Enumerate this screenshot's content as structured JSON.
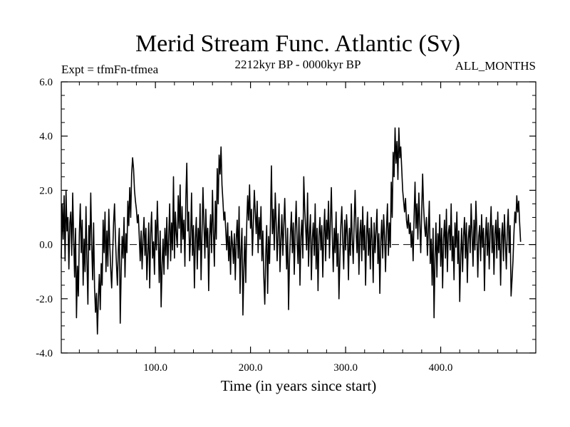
{
  "chart_data": {
    "type": "line",
    "title": "Merid Stream Func. Atlantic (Sv)",
    "subtitle_left": "Expt = tfmFn-tfmea",
    "subtitle_center": "2212kyr BP - 0000kyr BP",
    "subtitle_right": "ALL_MONTHS",
    "xlabel": "Time (in years since start)",
    "ylabel": "",
    "xlim": [
      1,
      500
    ],
    "ylim": [
      -4.0,
      6.0
    ],
    "xticks": [
      100,
      200,
      300,
      400
    ],
    "xtick_labels": [
      "100.0",
      "200.0",
      "300.0",
      "400.0"
    ],
    "yticks": [
      -4,
      -2,
      0,
      2,
      4,
      6
    ],
    "ytick_labels": [
      "-4.0",
      "-2.0",
      "0.0",
      "2.0",
      "4.0",
      "6.0"
    ],
    "zero_line": 0.0,
    "series": [
      {
        "name": "Merid Stream Func. Atlantic",
        "x_start": 1,
        "x_step": 1,
        "values": [
          -0.5,
          1.5,
          0.2,
          1.8,
          -0.6,
          2.0,
          0.5,
          1.0,
          -0.9,
          0.8,
          1.2,
          -0.4,
          1.9,
          0.3,
          -1.2,
          0.6,
          -2.7,
          -0.8,
          -1.9,
          0.4,
          1.5,
          -0.3,
          0.9,
          -1.5,
          0.2,
          -1.0,
          1.4,
          -0.6,
          -2.2,
          0.7,
          -0.2,
          1.9,
          0.0,
          -1.3,
          0.8,
          -1.6,
          -2.5,
          -1.8,
          -3.3,
          -2.0,
          -1.1,
          -2.4,
          -0.7,
          -1.5,
          0.9,
          -0.3,
          1.2,
          -1.0,
          0.5,
          -0.8,
          1.3,
          0.0,
          -0.9,
          -1.6,
          -0.4,
          0.8,
          1.5,
          0.2,
          -0.7,
          -1.5,
          -0.2,
          0.6,
          -2.9,
          -1.0,
          0.3,
          -0.5,
          1.0,
          -1.2,
          0.4,
          -0.3,
          1.6,
          0.7,
          2.1,
          1.0,
          2.6,
          3.2,
          2.8,
          2.0,
          1.6,
          1.3,
          0.8,
          1.1,
          0.3,
          -0.6,
          0.5,
          -0.9,
          0.2,
          1.0,
          -0.4,
          0.6,
          -1.3,
          -0.3,
          0.8,
          -1.6,
          0.4,
          1.2,
          -0.5,
          0.1,
          -1.1,
          0.9,
          -0.2,
          1.6,
          0.3,
          -1.4,
          0.5,
          -2.3,
          -0.8,
          0.2,
          -1.1,
          0.6,
          -0.4,
          1.0,
          -0.9,
          0.3,
          1.5,
          -0.6,
          0.8,
          -0.2,
          2.5,
          -0.5,
          1.2,
          0.4,
          -0.1,
          1.8,
          0.6,
          2.2,
          -0.3,
          1.4,
          0.2,
          0.9,
          -0.8,
          1.7,
          3.0,
          0.5,
          1.2,
          -0.6,
          0.3,
          1.9,
          -0.4,
          0.7,
          -1.6,
          0.2,
          1.0,
          -0.9,
          0.6,
          -0.2,
          1.5,
          -1.3,
          0.4,
          2.1,
          0.8,
          -0.5,
          1.3,
          -0.1,
          0.6,
          -1.7,
          0.3,
          1.1,
          -0.3,
          2.0,
          0.5,
          -0.8,
          1.6,
          0.2,
          2.8,
          1.5,
          3.3,
          2.6,
          3.6,
          2.2,
          1.6,
          0.9,
          1.2,
          0.5,
          -0.2,
          0.8,
          -0.6,
          0.3,
          -1.1,
          0.5,
          0.0,
          -0.7,
          0.4,
          -1.3,
          0.2,
          0.9,
          -0.5,
          1.4,
          -1.8,
          -0.2,
          0.6,
          -2.6,
          -0.9,
          0.3,
          -1.4,
          0.7,
          1.8,
          0.9,
          2.2,
          0.6,
          1.3,
          -0.4,
          0.8,
          2.0,
          1.2,
          0.4,
          1.6,
          -0.3,
          1.0,
          0.2,
          1.4,
          -0.6,
          0.5,
          -1.2,
          -2.2,
          -0.4,
          0.7,
          -1.8,
          0.3,
          -0.7,
          0.9,
          2.9,
          0.4,
          1.3,
          -0.2,
          1.9,
          0.8,
          -0.6,
          0.5,
          1.5,
          -1.0,
          0.2,
          1.1,
          -0.4,
          0.7,
          1.7,
          0.3,
          -0.9,
          0.6,
          -2.4,
          -0.6,
          0.4,
          1.2,
          -0.3,
          0.8,
          -1.1,
          0.5,
          1.6,
          0.1,
          -0.7,
          1.0,
          -1.5,
          0.3,
          0.9,
          -0.5,
          2.5,
          1.3,
          0.6,
          -0.2,
          1.9,
          -0.8,
          0.4,
          1.1,
          -1.3,
          0.2,
          0.8,
          -0.4,
          1.5,
          -0.9,
          0.6,
          -1.7,
          0.3,
          1.0,
          -0.2,
          0.7,
          -1.2,
          0.4,
          1.3,
          -0.6,
          0.9,
          0.2,
          1.6,
          -0.5,
          0.8,
          2.1,
          0.3,
          -1.0,
          0.6,
          -0.3,
          1.2,
          -0.8,
          0.4,
          -2.0,
          -0.5,
          0.7,
          1.4,
          0.1,
          -0.9,
          0.9,
          -0.2,
          1.1,
          0.3,
          -1.3,
          0.6,
          -0.4,
          1.5,
          0.2,
          -0.7,
          0.8,
          2.0,
          0.5,
          -0.3,
          1.0,
          -1.1,
          0.4,
          0.9,
          -0.6,
          1.4,
          -0.2,
          0.7,
          -1.5,
          0.3,
          1.2,
          -0.4,
          0.6,
          -0.9,
          1.0,
          0.2,
          -1.4,
          0.8,
          -0.3,
          0.5,
          1.3,
          -0.7,
          0.4,
          -1.8,
          0.1,
          0.9,
          -0.5,
          1.1,
          0.3,
          -1.0,
          0.6,
          1.5,
          -0.4,
          0.8,
          -0.1,
          2.3,
          1.0,
          3.4,
          2.5,
          4.3,
          3.0,
          3.8,
          2.4,
          4.3,
          3.2,
          3.6,
          2.8,
          2.0,
          1.6,
          1.2,
          1.7,
          0.9,
          0.6,
          1.1,
          0.4,
          0.8,
          -0.1,
          0.5,
          -0.6,
          1.0,
          2.3,
          0.6,
          1.5,
          0.2,
          1.9,
          0.8,
          -0.3,
          1.2,
          2.6,
          1.4,
          0.7,
          0.3,
          1.0,
          -0.4,
          0.5,
          1.6,
          -0.7,
          0.2,
          -1.5,
          0.6,
          -2.7,
          -0.5,
          0.8,
          -1.2,
          0.4,
          -0.3,
          1.1,
          -0.8,
          0.6,
          -1.6,
          0.2,
          0.9,
          -0.5,
          1.3,
          -1.0,
          0.4,
          0.7,
          -0.2,
          1.5,
          -0.6,
          0.3,
          -1.3,
          0.8,
          -0.1,
          1.2,
          -0.7,
          0.5,
          -2.1,
          -0.4,
          0.6,
          -1.0,
          0.3,
          1.0,
          -0.5,
          0.8,
          -1.4,
          0.2,
          0.7,
          -0.3,
          1.5,
          0.4,
          -0.8,
          0.9,
          -0.2,
          1.6,
          0.5,
          -1.2,
          0.3,
          0.7,
          -0.6,
          1.1,
          -0.1,
          0.6,
          -1.7,
          0.2,
          1.0,
          -0.4,
          0.8,
          -0.9,
          0.5,
          1.4,
          -0.3,
          0.7,
          -1.1,
          0.4,
          0.9,
          -0.5,
          1.2,
          -0.2,
          0.6,
          -1.5,
          0.3,
          0.8,
          -0.6,
          1.1,
          0.1,
          -0.9,
          0.5,
          1.3,
          -0.3,
          0.7,
          -1.9,
          -1.3,
          -0.6,
          0.4,
          1.2,
          0.8,
          1.8,
          1.2,
          1.6,
          0.8,
          0.1
        ]
      }
    ]
  }
}
